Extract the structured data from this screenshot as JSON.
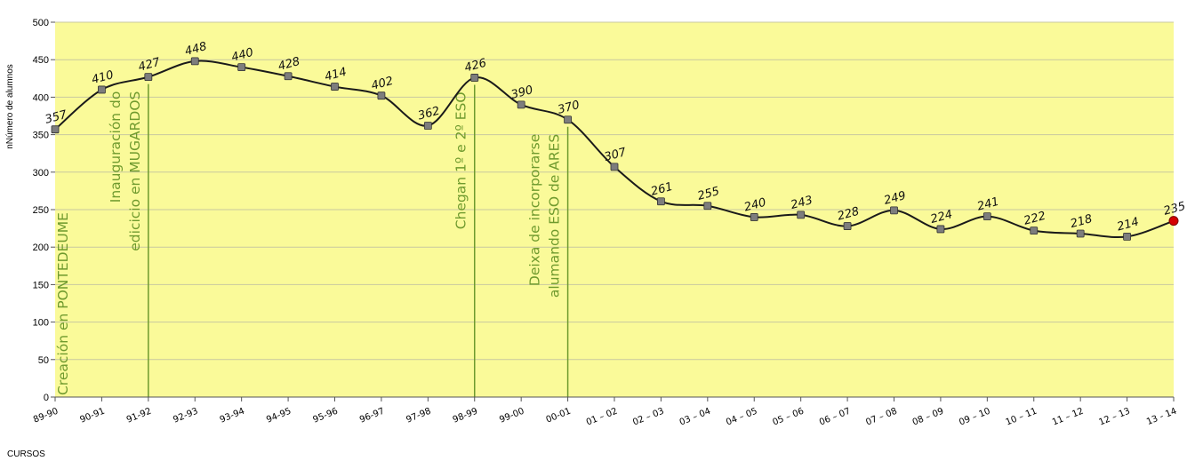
{
  "chart_data": {
    "type": "line",
    "title": "",
    "ylabel": "nNúmero de alumnos",
    "xlabel": "CURSOS",
    "ylim": [
      0,
      500
    ],
    "ytick_step": 50,
    "grid": true,
    "legend": "none",
    "colors": {
      "plot_bg": "#fafa99",
      "line": "#1a1a1a",
      "marker": "#7d7d7d",
      "last_marker": "#d40000",
      "annotation": "#6f9a2e",
      "grid": "#c8c8a0"
    },
    "categories": [
      "89-90",
      "90-91",
      "91-92",
      "92-93",
      "93-94",
      "94-95",
      "95-96",
      "96-97",
      "97-98",
      "98-99",
      "99-00",
      "00-01",
      "01 – 02",
      "02 – 03",
      "03 – 04",
      "04 – 05",
      "05 – 06",
      "06 – 07",
      "07 – 08",
      "08 – 09",
      "09 – 10",
      "10 – 11",
      "11 – 12",
      "12 – 13",
      "13 - 14"
    ],
    "series": [
      {
        "values": [
          357,
          410,
          427,
          448,
          440,
          428,
          414,
          402,
          362,
          426,
          390,
          370,
          307,
          261,
          255,
          240,
          243,
          228,
          249,
          224,
          241,
          222,
          218,
          214,
          235
        ],
        "data_labels": [
          "357",
          "410",
          "427",
          "448",
          "440",
          "428",
          "414",
          "402",
          "362",
          "426",
          "390",
          "370",
          "307",
          "261",
          "255",
          "240",
          "243",
          "228",
          "249",
          "224",
          "241",
          "222",
          "218",
          "214",
          "235"
        ]
      }
    ],
    "annotations": [
      {
        "category_index": 0,
        "lines": [
          "Creación en PONTEDEUME"
        ]
      },
      {
        "category_index": 2,
        "lines": [
          "Inauguración do",
          "edicicio en MUGARDOS"
        ]
      },
      {
        "category_index": 9,
        "lines": [
          "Chegan 1º e 2º ESO"
        ]
      },
      {
        "category_index": 11,
        "lines": [
          "Deixa de incorporarse",
          "alumando ESO de ARES"
        ]
      }
    ]
  }
}
